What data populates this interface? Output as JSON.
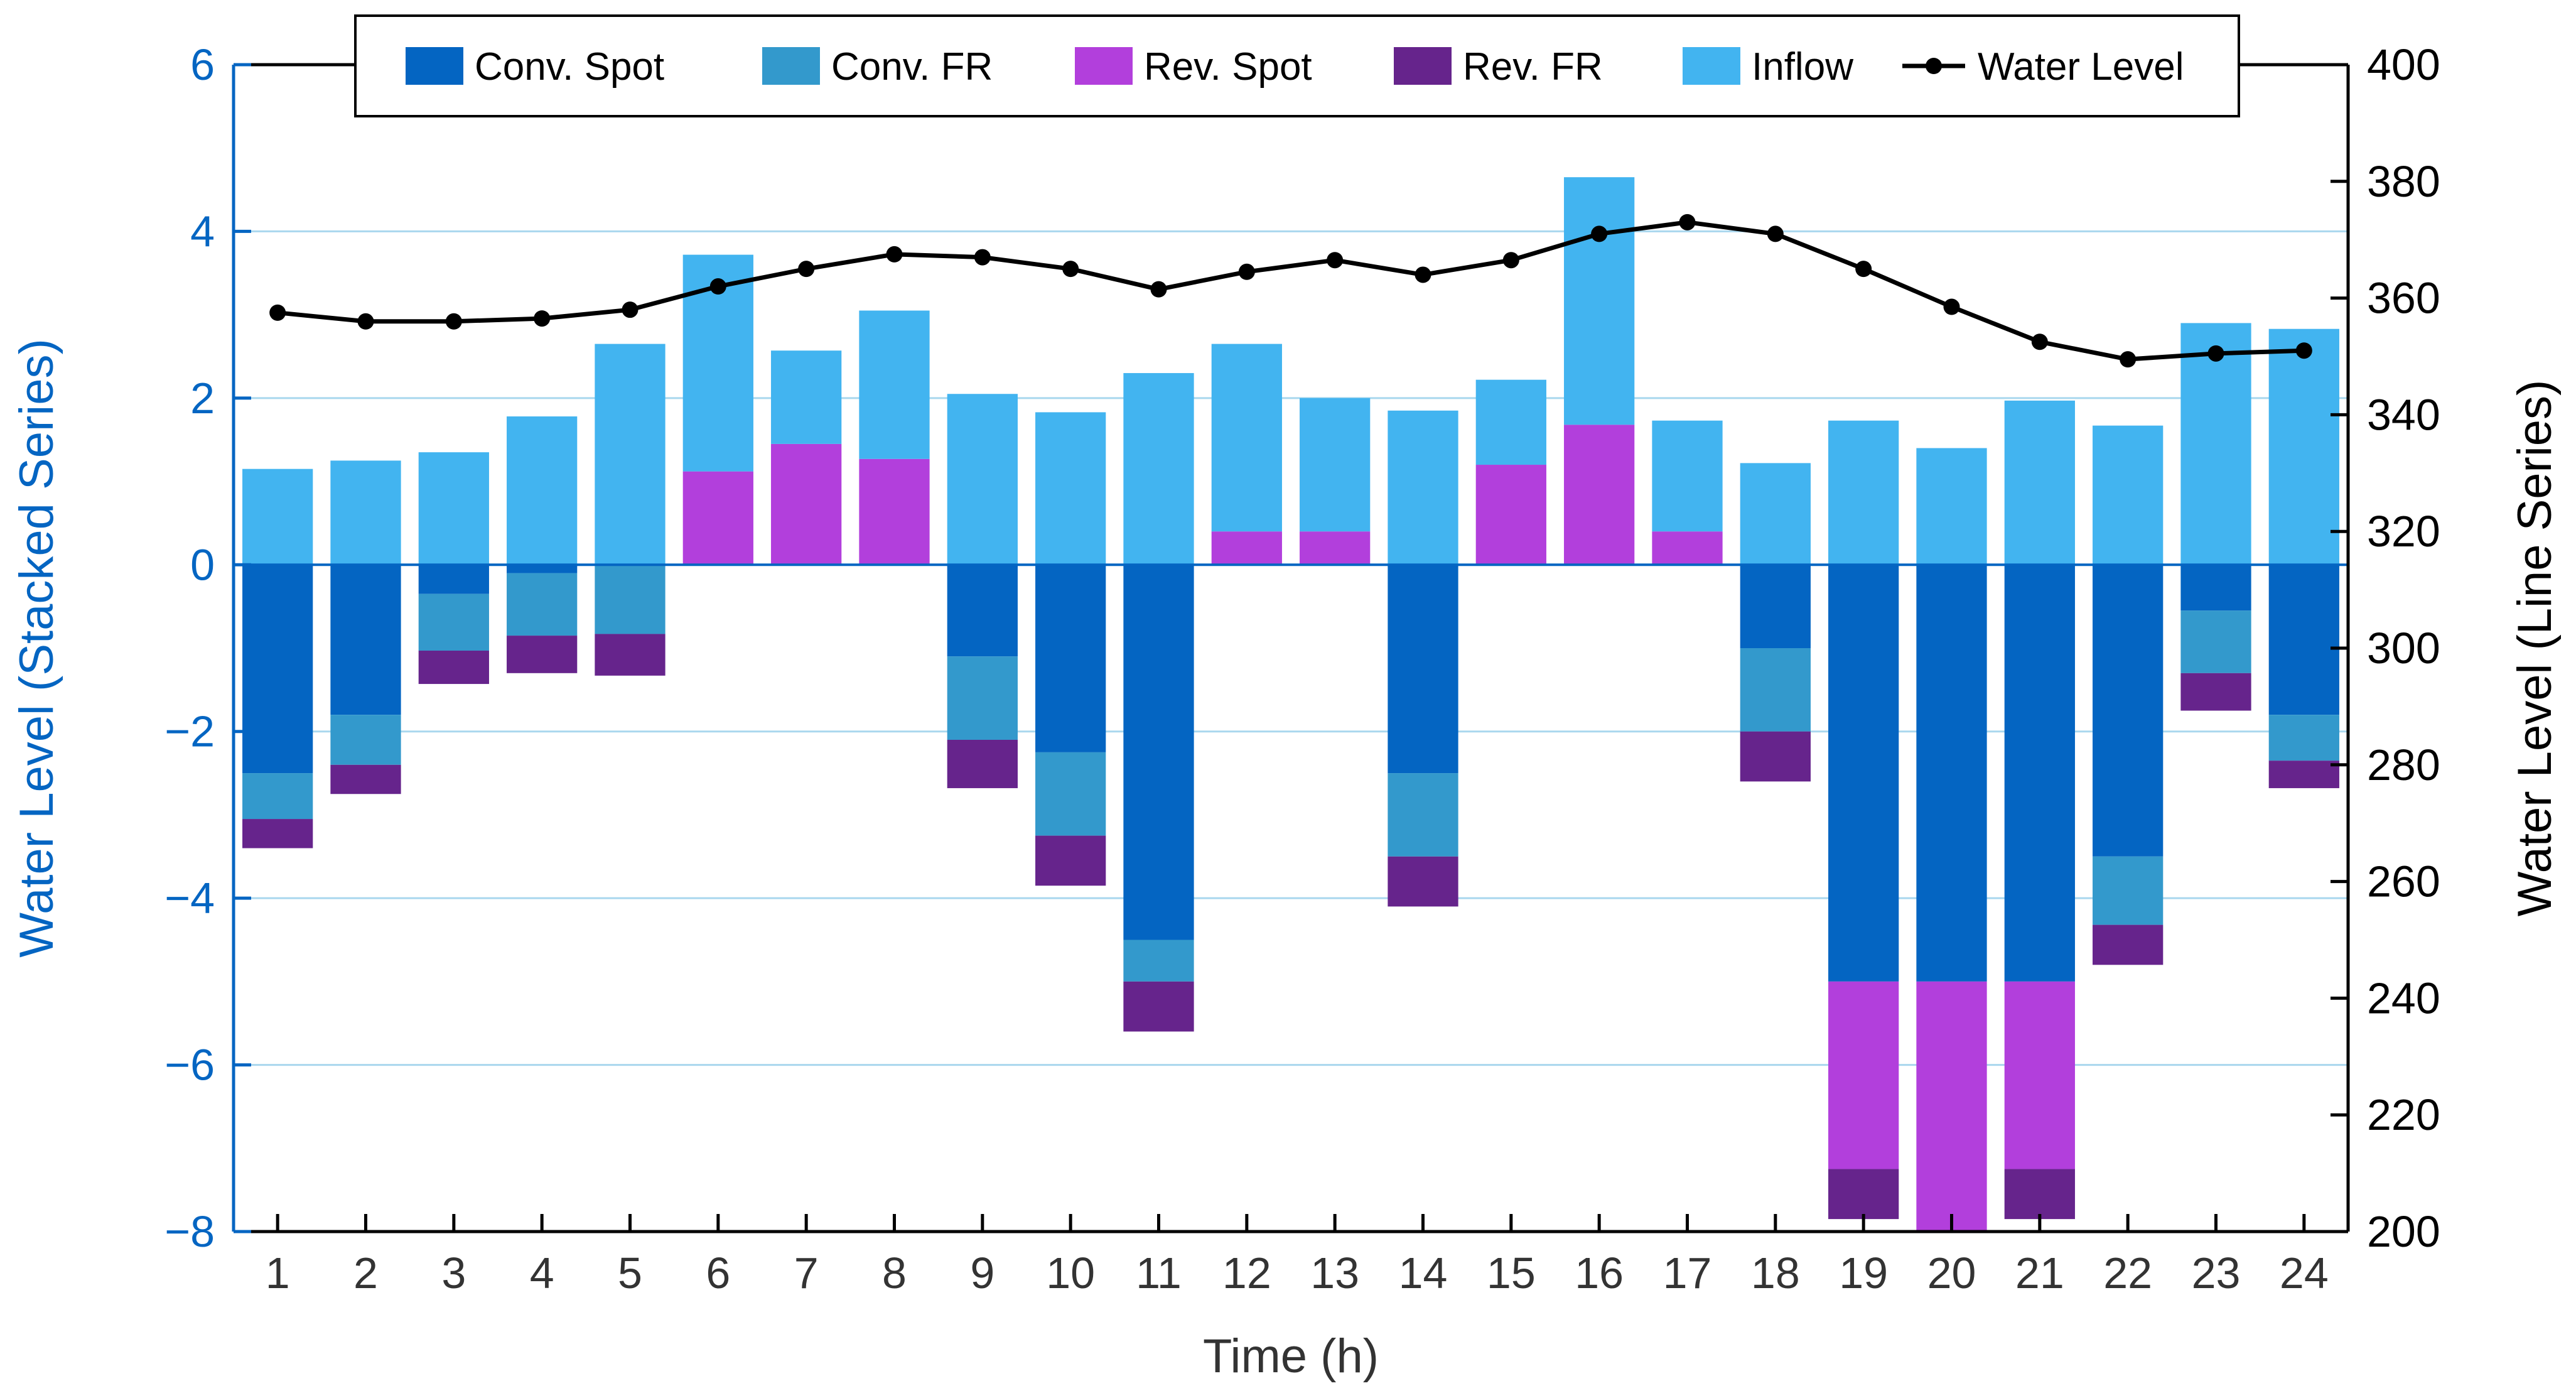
{
  "chart_data": {
    "type": "bar",
    "subtype": "stacked-bar-with-line-secondary-axis",
    "title": "",
    "xlabel": "Time (h)",
    "ylabel": "Water Level (Stacked Series)",
    "y2label": "Water Level (Line Series)",
    "ylim": [
      -8,
      6
    ],
    "y2lim": [
      200,
      400
    ],
    "yticks": [
      "6",
      "4",
      "2",
      "0",
      "−2",
      "−4",
      "−6",
      "−8"
    ],
    "y2ticks": [
      "400",
      "380",
      "360",
      "340",
      "320",
      "300",
      "280",
      "260",
      "240",
      "220",
      "200"
    ],
    "categories": [
      "1",
      "2",
      "3",
      "4",
      "5",
      "6",
      "7",
      "8",
      "9",
      "10",
      "11",
      "12",
      "13",
      "14",
      "15",
      "16",
      "17",
      "18",
      "19",
      "20",
      "21",
      "22",
      "23",
      "24"
    ],
    "grid": "horizontal",
    "legend_position": "top",
    "series": [
      {
        "name": "Inflow",
        "color": "#42b4f0",
        "stack": "positive",
        "values": [
          1.15,
          1.25,
          1.35,
          1.78,
          2.65,
          2.6,
          1.12,
          1.78,
          2.05,
          1.83,
          2.3,
          2.25,
          1.6,
          1.85,
          1.02,
          2.97,
          1.33,
          1.22,
          1.73,
          1.4,
          1.97,
          1.67,
          2.9,
          2.83
        ]
      },
      {
        "name": "Rev. Spot",
        "color": "#b23fdc",
        "stack": "positive-base",
        "values": [
          0,
          0,
          0,
          0,
          0,
          1.12,
          1.45,
          1.27,
          0,
          0,
          0,
          0.4,
          0.4,
          0,
          1.2,
          1.68,
          0.4,
          0,
          0,
          0,
          0,
          0,
          0,
          0
        ]
      },
      {
        "name": "Conv. Spot",
        "color": "#0465c2",
        "stack": "negative",
        "values": [
          -2.5,
          -1.8,
          -0.35,
          -0.1,
          0,
          0,
          0,
          0,
          -1.1,
          -2.25,
          -4.5,
          0,
          0,
          -2.5,
          0,
          0,
          0,
          -1.0,
          -5.0,
          -5.0,
          -5.0,
          -3.5,
          -0.55,
          -1.8
        ]
      },
      {
        "name": "Conv. FR",
        "color": "#3399cc",
        "stack": "negative",
        "values": [
          -0.55,
          -0.6,
          -0.68,
          -0.75,
          -0.83,
          0,
          0,
          0,
          -1.0,
          -1.0,
          -0.5,
          0,
          0,
          -1.0,
          0,
          0,
          0,
          -1.0,
          0,
          0,
          0,
          -0.82,
          -0.75,
          -0.55
        ]
      },
      {
        "name": "Rev. Spot",
        "color": "#b23fdc",
        "stack": "negative",
        "values": [
          0,
          0,
          0,
          0,
          0,
          0,
          0,
          0,
          0,
          0,
          0,
          0,
          0,
          0,
          0,
          0,
          0,
          0,
          -2.25,
          -3.0,
          -2.25,
          0,
          0,
          0
        ]
      },
      {
        "name": "Rev. FR",
        "color": "#66248c",
        "stack": "negative",
        "values": [
          -0.35,
          -0.35,
          -0.4,
          -0.45,
          -0.5,
          0,
          0,
          0,
          -0.58,
          -0.6,
          -0.6,
          0,
          0,
          -0.6,
          0,
          0,
          0,
          -0.6,
          -0.6,
          0,
          -0.6,
          -0.48,
          -0.45,
          -0.33
        ]
      }
    ],
    "line_series": {
      "name": "Water Level",
      "color": "#000000",
      "axis": "y2",
      "values": [
        357.5,
        356,
        356,
        356.5,
        358,
        362,
        365,
        367.5,
        367,
        365,
        361.5,
        364.5,
        366.5,
        364,
        366.5,
        371,
        373,
        371,
        365,
        358.5,
        352.5,
        349.5,
        350.5,
        351
      ]
    },
    "legend": [
      {
        "label": "Conv. Spot",
        "color": "#0465c2",
        "kind": "patch"
      },
      {
        "label": "Conv. FR",
        "color": "#3399cc",
        "kind": "patch"
      },
      {
        "label": "Rev. Spot",
        "color": "#b23fdc",
        "kind": "patch"
      },
      {
        "label": "Rev. FR",
        "color": "#66248c",
        "kind": "patch"
      },
      {
        "label": "Inflow",
        "color": "#42b4f0",
        "kind": "patch"
      },
      {
        "label": "Water Level",
        "color": "#000000",
        "kind": "line"
      }
    ],
    "colors": {
      "left_axis": "#0465c2",
      "right_axis": "#000000",
      "grid": "#a9d7ee",
      "zero_line": "#0465c2"
    }
  }
}
